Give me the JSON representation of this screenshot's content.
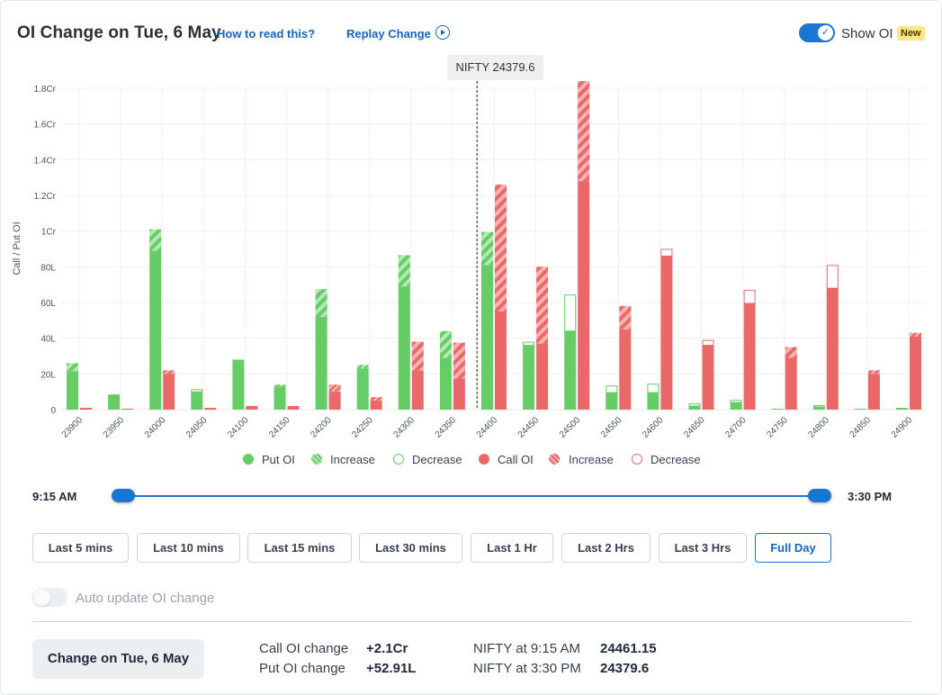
{
  "header": {
    "title": "OI Change on Tue, 6 May",
    "how_to_read": "How to read this?",
    "replay": "Replay Change",
    "show_oi_label": "Show OI",
    "new_badge": "New"
  },
  "tooltip": "NIFTY 24379.6",
  "chart_data": {
    "type": "bar",
    "ylabel": "Call / Put OI",
    "y_ticks": [
      "0",
      "20L",
      "40L",
      "60L",
      "80L",
      "1Cr",
      "1.2Cr",
      "1.4Cr",
      "1.6Cr",
      "1.8Cr"
    ],
    "ylim": [
      0,
      18000000
    ],
    "categories": [
      "23900",
      "23950",
      "24000",
      "24050",
      "24100",
      "24150",
      "24200",
      "24250",
      "24300",
      "24350",
      "24400",
      "24450",
      "24500",
      "24550",
      "24600",
      "24650",
      "24700",
      "24750",
      "24800",
      "24850",
      "24900"
    ],
    "current_marker": 24379.6,
    "series": [
      {
        "name": "Put OI",
        "color": "#66cc66",
        "values": [
          2150000,
          850000,
          8900000,
          1000000,
          2800000,
          1300000,
          5200000,
          2300000,
          6900000,
          2900000,
          8100000,
          3600000,
          4400000,
          950000,
          950000,
          200000,
          400000,
          50000,
          150000,
          50000,
          100000
        ]
      },
      {
        "name": "Increase",
        "color": "#66cc66",
        "values": [
          450000,
          0,
          1200000,
          0,
          0,
          100000,
          1550000,
          200000,
          1750000,
          1500000,
          1850000,
          0,
          0,
          0,
          0,
          0,
          0,
          0,
          0,
          0,
          0
        ]
      },
      {
        "name": "Decrease",
        "color": "#66cc66",
        "values": [
          0,
          0,
          0,
          150000,
          0,
          0,
          0,
          0,
          0,
          0,
          0,
          200000,
          2050000,
          400000,
          500000,
          150000,
          150000,
          0,
          100000,
          0,
          0
        ]
      },
      {
        "name": "Call OI",
        "color": "#eb6868",
        "values": [
          100000,
          50000,
          2000000,
          100000,
          200000,
          200000,
          1000000,
          500000,
          2200000,
          1750000,
          5500000,
          3700000,
          12800000,
          4500000,
          8600000,
          3600000,
          5950000,
          2900000,
          6800000,
          2000000,
          4100000
        ]
      },
      {
        "name": "Increase",
        "color": "#eb6868",
        "values": [
          0,
          0,
          200000,
          0,
          0,
          0,
          400000,
          200000,
          1600000,
          2000000,
          7100000,
          4300000,
          5600000,
          1300000,
          0,
          0,
          0,
          600000,
          0,
          200000,
          200000
        ]
      },
      {
        "name": "Decrease",
        "color": "#eb6868",
        "values": [
          0,
          0,
          0,
          0,
          0,
          0,
          0,
          0,
          0,
          0,
          0,
          0,
          0,
          0,
          400000,
          300000,
          750000,
          0,
          1300000,
          0,
          0
        ]
      }
    ],
    "legend": [
      "Put OI",
      "Increase",
      "Decrease",
      "Call OI",
      "Increase",
      "Decrease"
    ],
    "legend_position": "bottom-center",
    "grid": true
  },
  "slider": {
    "start": "9:15 AM",
    "end": "3:30 PM"
  },
  "ranges": [
    "Last 5 mins",
    "Last 10 mins",
    "Last 15 mins",
    "Last 30 mins",
    "Last 1 Hr",
    "Last 2 Hrs",
    "Last 3 Hrs",
    "Full Day"
  ],
  "active_range": "Full Day",
  "auto_update": {
    "label": "Auto update OI change",
    "enabled": false
  },
  "summary": {
    "change_button": "Change on Tue, 6 May",
    "call_label": "Call OI change",
    "call_value": "+2.1Cr",
    "put_label": "Put OI change",
    "put_value": "+52.91L",
    "nifty_open_label": "NIFTY at 9:15 AM",
    "nifty_open_value": "24461.15",
    "nifty_close_label": "NIFTY at 3:30 PM",
    "nifty_close_value": "24379.6"
  },
  "colors": {
    "put": "#66cc66",
    "call": "#eb6868",
    "accent": "#1976d2",
    "link": "#1565c0",
    "badge": "#fde68a"
  }
}
